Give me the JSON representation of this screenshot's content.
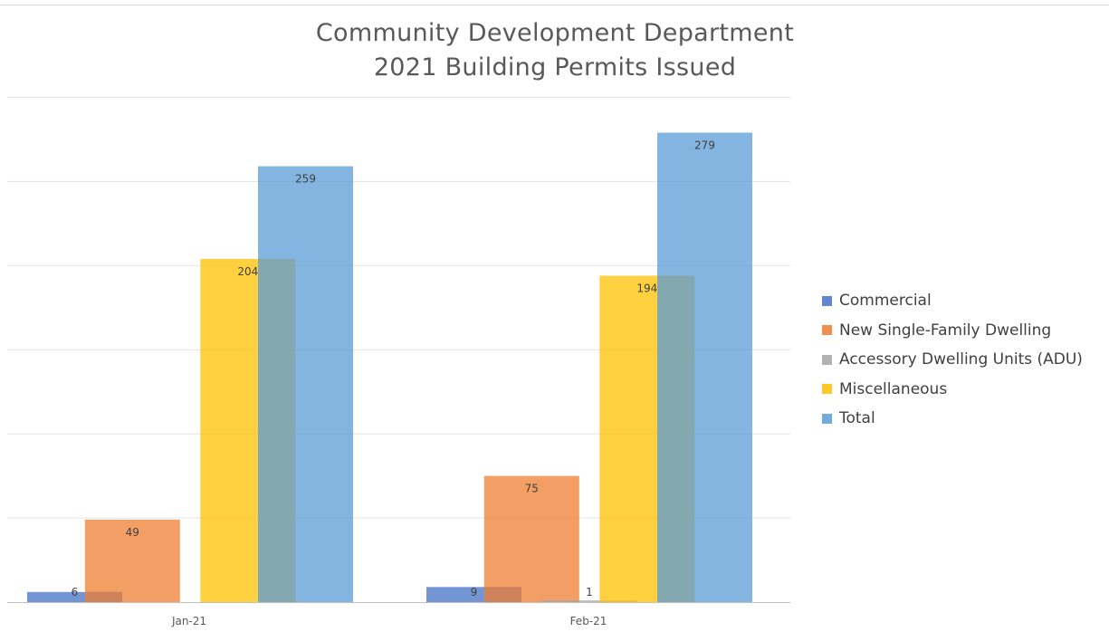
{
  "chart_data": {
    "type": "bar",
    "title": "Community Development Department",
    "subtitle": "2021 Building Permits Issued",
    "categories": [
      "Jan-21",
      "Feb-21"
    ],
    "series": [
      {
        "name": "Commercial",
        "values": [
          6,
          9
        ],
        "color": "#4472c4"
      },
      {
        "name": "New Single-Family Dwelling",
        "values": [
          49,
          75
        ],
        "color": "#ed7d31"
      },
      {
        "name": "Accessory Dwelling Units (ADU)",
        "values": [
          0,
          1
        ],
        "color": "#a5a5a5"
      },
      {
        "name": "Miscellaneous",
        "values": [
          204,
          194
        ],
        "color": "#ffc000"
      },
      {
        "name": "Total",
        "values": [
          259,
          279
        ],
        "color": "#5b9bd5"
      }
    ],
    "data_labels": [
      [
        "6",
        "9"
      ],
      [
        "49",
        "75"
      ],
      [
        "",
        "1"
      ],
      [
        "204",
        "194"
      ],
      [
        "259",
        "279"
      ]
    ],
    "ylim": [
      0,
      300
    ],
    "gridlines": true,
    "legend": "right",
    "bar_opacity": 0.75
  }
}
